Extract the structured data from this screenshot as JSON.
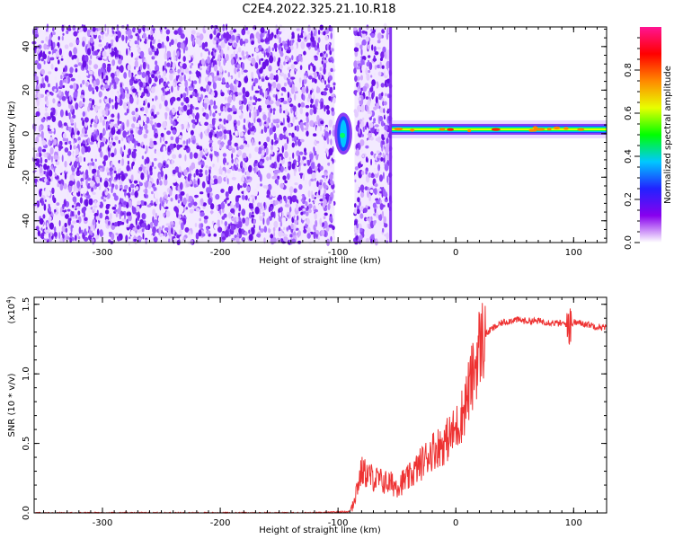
{
  "figure": {
    "title": "C2E4.2022.325.21.10.R18",
    "colors": {
      "background": "#ffffff",
      "snr_line": "#ee3333",
      "axis": "#000000"
    }
  },
  "chart_data": [
    {
      "type": "heatmap",
      "panel": "spectrogram",
      "xlabel": "Height of straight line (km)",
      "ylabel": "Frequency (Hz)",
      "xlim": [
        -358,
        128
      ],
      "ylim": [
        -50,
        49
      ],
      "xticks": [
        -300,
        -200,
        -100,
        0,
        100
      ],
      "yticks": [
        -40,
        -20,
        0,
        20,
        40
      ],
      "grid": false,
      "regions": [
        {
          "name": "noise",
          "x": [
            -358,
            -103
          ],
          "freq": [
            -50,
            49
          ],
          "level": 0.15
        },
        {
          "name": "onset",
          "x": [
            -103,
            -88
          ],
          "freq": [
            -8,
            8
          ],
          "level": 0.45
        },
        {
          "name": "noise",
          "x": [
            -86,
            -55
          ],
          "freq": [
            -50,
            49
          ],
          "level": 0.18
        },
        {
          "name": "signal",
          "x": [
            -55,
            128
          ],
          "freq": [
            0,
            4
          ],
          "level": 0.85
        }
      ],
      "colorbar": {
        "label": "Normalized spectral amplitude",
        "range": [
          0.0,
          1.0
        ],
        "ticks": [
          0.0,
          0.2,
          0.4,
          0.6,
          0.8
        ],
        "tick_labels": [
          "0.0",
          "0.2",
          "0.4",
          "0.6",
          "0.8"
        ],
        "colors": [
          "#ffffff",
          "#8800ee",
          "#2222ff",
          "#00c8ff",
          "#00ff00",
          "#e8ff00",
          "#ff8800",
          "#ff0000",
          "#ff1493"
        ]
      }
    },
    {
      "type": "line",
      "panel": "snr",
      "xlabel": "Height of straight line (km)",
      "ylabel": "SNR (10 * v/v)",
      "y_scale_note": "(x10",
      "y_scale_exp": "4",
      "y_scale_close": ")",
      "xlim": [
        -358,
        128
      ],
      "ylim": [
        0,
        1.55
      ],
      "xticks": [
        -300,
        -200,
        -100,
        0,
        100
      ],
      "yticks": [
        0.0,
        0.5,
        1.0,
        1.5
      ],
      "ytick_labels": [
        "0.0",
        "0.5",
        "1.0",
        "1.5"
      ],
      "grid": false,
      "series": [
        {
          "x": [
            -358,
            -300,
            -200,
            -120,
            -90,
            -85,
            -80,
            -70,
            -60,
            -50,
            -40,
            -30,
            -20,
            -10,
            0,
            5,
            10,
            15,
            20,
            25,
            30,
            40,
            50,
            60,
            70,
            80,
            90,
            95,
            100,
            110,
            120,
            128
          ],
          "values": [
            0.0,
            0.0,
            0.0,
            0.0,
            0.01,
            0.15,
            0.3,
            0.25,
            0.22,
            0.2,
            0.25,
            0.35,
            0.45,
            0.5,
            0.6,
            0.7,
            0.85,
            1.0,
            1.2,
            1.28,
            1.32,
            1.37,
            1.39,
            1.38,
            1.38,
            1.37,
            1.36,
            1.36,
            1.37,
            1.36,
            1.34,
            1.33
          ]
        }
      ]
    }
  ]
}
